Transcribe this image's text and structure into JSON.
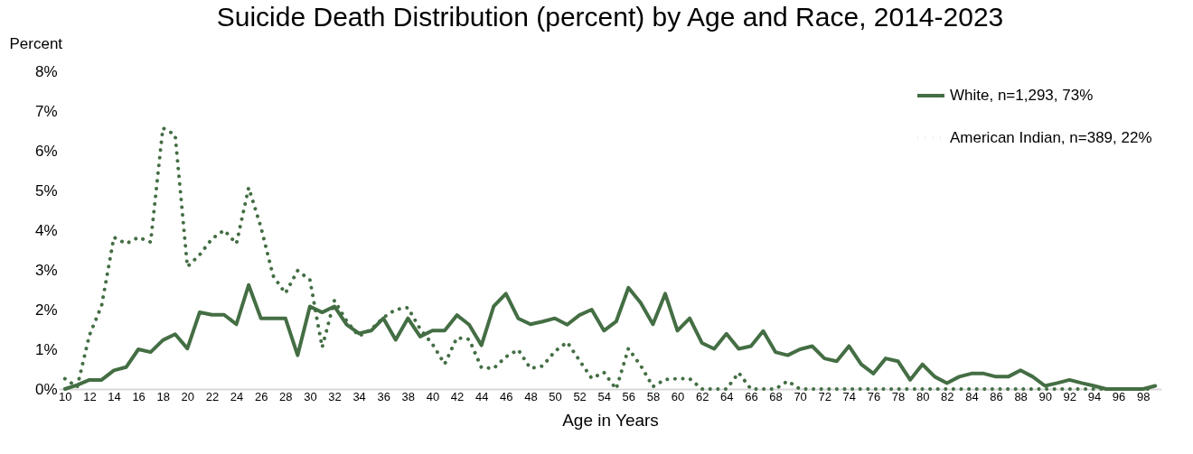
{
  "chart_data": {
    "type": "line",
    "title": "Suicide Death Distribution (percent) by Age and Race, 2014-2023",
    "xlabel": "Age in Years",
    "ylabel": "Percent",
    "categories": [
      "10",
      null,
      "12",
      null,
      "14",
      null,
      "16",
      null,
      "18",
      null,
      "20",
      null,
      "22",
      null,
      "24",
      null,
      "26",
      null,
      "28",
      null,
      "30",
      null,
      "32",
      null,
      "34",
      null,
      "36",
      null,
      "38",
      null,
      "40",
      null,
      "42",
      null,
      "44",
      null,
      "46",
      null,
      "48",
      null,
      "50",
      null,
      "52",
      null,
      "54",
      null,
      "56",
      null,
      "58",
      null,
      "60",
      null,
      "62",
      null,
      "64",
      null,
      "66",
      null,
      "68",
      null,
      "70",
      null,
      "72",
      null,
      "74",
      null,
      "76",
      null,
      "78",
      null,
      "80",
      null,
      "82",
      null,
      "84",
      null,
      "86",
      null,
      "88",
      null,
      "90",
      null,
      "92",
      null,
      "94",
      null,
      "96",
      null,
      "98",
      null
    ],
    "series": [
      {
        "name": "White, n=1,293, 73%",
        "color": "#446e44",
        "line_style": "solid",
        "values": [
          0,
          0.1,
          0.23,
          0.23,
          0.47,
          0.55,
          1.0,
          0.93,
          1.23,
          1.38,
          1.02,
          1.93,
          1.87,
          1.87,
          1.63,
          2.62,
          1.78,
          1.78,
          1.78,
          0.85,
          2.08,
          1.93,
          2.08,
          1.62,
          1.4,
          1.47,
          1.78,
          1.24,
          1.78,
          1.32,
          1.47,
          1.47,
          1.86,
          1.62,
          1.1,
          2.08,
          2.4,
          1.78,
          1.63,
          1.7,
          1.78,
          1.62,
          1.86,
          2.0,
          1.47,
          1.7,
          2.55,
          2.17,
          1.63,
          2.4,
          1.47,
          1.78,
          1.16,
          1.01,
          1.39,
          1.01,
          1.08,
          1.46,
          0.93,
          0.85,
          1.0,
          1.08,
          0.77,
          0.7,
          1.08,
          0.62,
          0.39,
          0.77,
          0.7,
          0.23,
          0.62,
          0.31,
          0.15,
          0.31,
          0.39,
          0.39,
          0.31,
          0.31,
          0.47,
          0.31,
          0.08,
          0.15,
          0.23,
          0.15,
          0.08,
          0,
          0,
          0,
          0,
          0.08
        ]
      },
      {
        "name": "American Indian, n=389, 22%",
        "color": "#446e44",
        "line_style": "dotted",
        "values": [
          0.26,
          0.05,
          1.35,
          2.1,
          3.82,
          3.66,
          3.82,
          3.7,
          6.57,
          6.4,
          3.08,
          3.38,
          3.78,
          4.0,
          3.66,
          5.07,
          4.08,
          2.85,
          2.41,
          2.98,
          2.75,
          1.05,
          2.23,
          1.71,
          1.33,
          1.5,
          1.8,
          2.0,
          2.05,
          1.51,
          1.13,
          0.63,
          1.29,
          1.25,
          0.54,
          0.52,
          0.81,
          0.99,
          0.52,
          0.58,
          0.95,
          1.18,
          0.72,
          0.27,
          0.42,
          0,
          1.02,
          0.59,
          0.06,
          0.24,
          0.26,
          0.26,
          0,
          0,
          0,
          0.41,
          0,
          0,
          0,
          0.2,
          0,
          0,
          0,
          0,
          0,
          0,
          0,
          0,
          0,
          0,
          0,
          0,
          0,
          0,
          0,
          0,
          0,
          0,
          0,
          0,
          0,
          0,
          0,
          0,
          0,
          0,
          0,
          0,
          0,
          0
        ]
      }
    ],
    "ylim": [
      0,
      8
    ],
    "yticks": [
      {
        "value": 0,
        "label": "0%"
      },
      {
        "value": 1,
        "label": "1%"
      },
      {
        "value": 2,
        "label": "2%"
      },
      {
        "value": 3,
        "label": "3%"
      },
      {
        "value": 4,
        "label": "4%"
      },
      {
        "value": 5,
        "label": "5%"
      },
      {
        "value": 6,
        "label": "6%"
      },
      {
        "value": 7,
        "label": "7%"
      },
      {
        "value": 8,
        "label": "8%"
      }
    ],
    "grid": false,
    "legend": "top right",
    "marker": "none"
  }
}
